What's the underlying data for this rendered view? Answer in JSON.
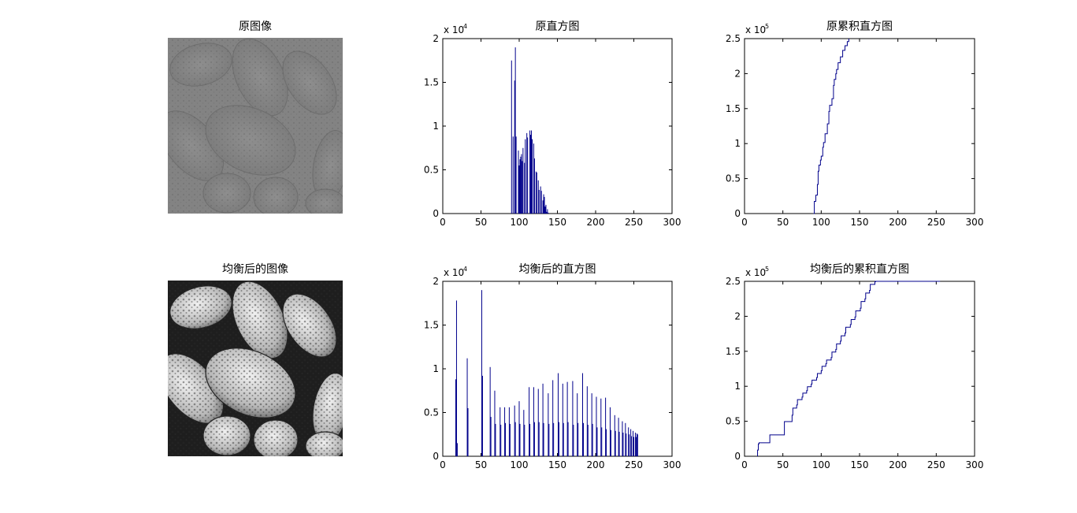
{
  "figure": {
    "images": [
      {
        "title": "原图像",
        "kind": "low-contrast"
      },
      {
        "title": "均衡后的图像",
        "kind": "equalized"
      }
    ]
  },
  "chart_data": [
    {
      "type": "bar",
      "title": "原直方图",
      "xlim": [
        0,
        300
      ],
      "ylim": [
        0,
        20000
      ],
      "xticks": [
        0,
        50,
        100,
        150,
        200,
        250,
        300
      ],
      "yticks": [
        0,
        0.5,
        1,
        1.5,
        2
      ],
      "yexponent": "x 10",
      "yexponent_power": "4",
      "x": [
        90,
        91,
        92,
        93,
        94,
        95,
        96,
        97,
        98,
        99,
        100,
        101,
        102,
        103,
        104,
        105,
        106,
        107,
        108,
        109,
        110,
        111,
        112,
        113,
        114,
        115,
        116,
        117,
        118,
        119,
        120,
        121,
        122,
        123,
        124,
        125,
        126,
        127,
        128,
        129,
        130,
        131,
        132,
        133,
        134,
        135,
        136,
        137,
        138
      ],
      "values": [
        17500,
        0,
        8800,
        0,
        15200,
        19000,
        8800,
        0,
        0,
        7200,
        5500,
        6200,
        6500,
        6800,
        6000,
        7500,
        0,
        5800,
        8500,
        0,
        9200,
        8700,
        0,
        0,
        9500,
        9000,
        9500,
        8500,
        0,
        8000,
        6300,
        0,
        4800,
        4700,
        0,
        3800,
        2700,
        0,
        3100,
        2600,
        0,
        1500,
        2200,
        1900,
        800,
        1000,
        200,
        500,
        100
      ]
    },
    {
      "type": "line",
      "title": "原累积直方图",
      "xlim": [
        0,
        300
      ],
      "ylim": [
        0,
        250000
      ],
      "xticks": [
        0,
        50,
        100,
        150,
        200,
        250,
        300
      ],
      "yticks": [
        0,
        0.5,
        1,
        1.5,
        2,
        2.5
      ],
      "yexponent": "x 10",
      "yexponent_power": "5",
      "x": [
        90,
        91,
        92,
        93,
        95,
        96,
        97,
        99,
        100,
        102,
        103,
        105,
        106,
        108,
        110,
        111,
        112,
        114,
        116,
        117,
        119,
        120,
        122,
        125,
        128,
        131,
        134,
        136
      ],
      "y": [
        0,
        17500,
        17500,
        26300,
        41500,
        60500,
        69300,
        76500,
        82000,
        94700,
        101500,
        114000,
        114000,
        128300,
        146000,
        154700,
        154700,
        164200,
        183200,
        191700,
        199700,
        206000,
        215500,
        224000,
        233300,
        239800,
        245800,
        250000
      ]
    },
    {
      "type": "bar",
      "title": "均衡后的直方图",
      "xlim": [
        0,
        300
      ],
      "ylim": [
        0,
        20000
      ],
      "xticks": [
        0,
        50,
        100,
        150,
        200,
        250,
        300
      ],
      "yticks": [
        0,
        0.5,
        1,
        1.5,
        2
      ],
      "yexponent": "x 10",
      "yexponent_power": "4",
      "x": [
        17,
        18,
        19,
        32,
        33,
        51,
        52,
        62,
        63,
        68,
        69,
        75,
        76,
        81,
        82,
        87,
        88,
        94,
        95,
        100,
        101,
        106,
        107,
        113,
        114,
        119,
        120,
        125,
        126,
        131,
        132,
        138,
        139,
        144,
        145,
        151,
        152,
        157,
        158,
        163,
        164,
        170,
        171,
        176,
        177,
        183,
        184,
        189,
        190,
        195,
        196,
        201,
        202,
        207,
        208,
        213,
        214,
        219,
        220,
        225,
        226,
        230,
        231,
        235,
        236,
        239,
        240,
        243,
        244,
        246,
        247,
        249,
        250,
        252,
        253,
        254,
        255
      ],
      "values": [
        8800,
        17800,
        1500,
        11200,
        5500,
        19000,
        9200,
        10200,
        4500,
        7500,
        3700,
        5600,
        3600,
        5600,
        3800,
        5600,
        3700,
        5800,
        3900,
        6300,
        3700,
        5300,
        3600,
        7900,
        3700,
        7900,
        3900,
        7700,
        3900,
        8300,
        3800,
        7200,
        3700,
        8700,
        3800,
        9500,
        3900,
        8300,
        3800,
        8500,
        3900,
        8600,
        3600,
        7200,
        3800,
        9500,
        3800,
        8000,
        3600,
        7200,
        3700,
        6800,
        3300,
        6600,
        3300,
        6700,
        3100,
        5600,
        3000,
        4700,
        2900,
        4400,
        2800,
        4000,
        2700,
        3800,
        2600,
        3300,
        2500,
        3100,
        2300,
        2900,
        2200,
        2700,
        2200,
        2600,
        2500
      ]
    },
    {
      "type": "line",
      "title": "均衡后的累积直方图",
      "xlim": [
        0,
        300
      ],
      "ylim": [
        0,
        250000
      ],
      "xticks": [
        0,
        50,
        100,
        150,
        200,
        250,
        300
      ],
      "yticks": [
        0,
        0.5,
        1,
        1.5,
        2,
        2.5
      ],
      "yexponent": "x 10",
      "yexponent_power": "5",
      "x": [
        17,
        18,
        19,
        32,
        33,
        51,
        52,
        62,
        63,
        68,
        69,
        75,
        76,
        81,
        82,
        87,
        88,
        94,
        95,
        100,
        101,
        106,
        107,
        113,
        114,
        119,
        120,
        125,
        126,
        131,
        132,
        138,
        139,
        144,
        145,
        151,
        152,
        157,
        158,
        163,
        164,
        170,
        171,
        176,
        177,
        183,
        184,
        189,
        190,
        195,
        196,
        201,
        202,
        207,
        208,
        213,
        214,
        219,
        220,
        225,
        226,
        230,
        231,
        235,
        236,
        239,
        240,
        243,
        244,
        246,
        247,
        249,
        250,
        252,
        253,
        254,
        255
      ],
      "y": [
        8800,
        17800,
        19300,
        19300,
        30500,
        30500,
        49500,
        58700,
        68900,
        73400,
        80900,
        84600,
        90200,
        93800,
        99400,
        103200,
        108800,
        112500,
        118300,
        122200,
        128500,
        132200,
        137500,
        141100,
        149000,
        152700,
        160600,
        164500,
        172200,
        176100,
        184400,
        188200,
        195400,
        199100,
        207800,
        211600,
        221100,
        225000,
        233300,
        237100,
        245600,
        249500,
        253000,
        253000,
        253000,
        253000,
        253000,
        253000,
        253000,
        253000,
        253000,
        253000,
        253000,
        253000,
        253000,
        253000,
        253000,
        253000,
        253000,
        253000,
        253000,
        253000,
        253000,
        253000,
        253000,
        253000,
        253000,
        253000,
        253000,
        253000,
        253000,
        253000,
        253000,
        253000,
        253000,
        253000,
        253000
      ]
    }
  ]
}
